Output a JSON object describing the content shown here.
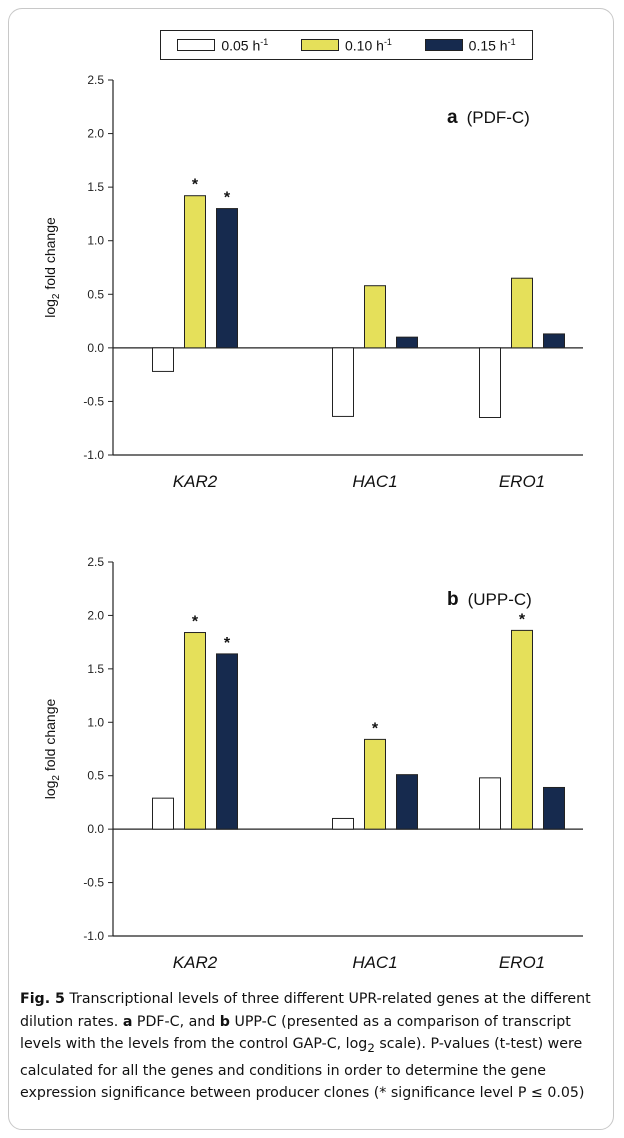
{
  "legend": [
    {
      "base": "0.05 h",
      "sup": "-1",
      "color": "#ffffff"
    },
    {
      "base": "0.10 h",
      "sup": "-1",
      "color": "#e5e05a"
    },
    {
      "base": "0.15 h",
      "sup": "-1",
      "color": "#162a4e"
    }
  ],
  "chart_data": [
    {
      "type": "bar",
      "panel_letter": "a",
      "panel_name": "(PDF-C)",
      "ylabel_base": "log",
      "ylabel_sub": "2",
      "ylabel_rest": " fold change",
      "ylim": [
        -1.0,
        2.5
      ],
      "yticks": [
        "2.5",
        "2.0",
        "1.5",
        "1.0",
        "0.5",
        "0.0",
        "-0.5",
        "-1.0"
      ],
      "categories": [
        "KAR2",
        "HAC1",
        "ERO1"
      ],
      "series": [
        {
          "name": "0.05 h-1",
          "values": [
            -0.22,
            -0.64,
            -0.65
          ],
          "significant": [
            false,
            false,
            false
          ]
        },
        {
          "name": "0.10 h-1",
          "values": [
            1.42,
            0.58,
            0.65
          ],
          "significant": [
            true,
            false,
            false
          ]
        },
        {
          "name": "0.15 h-1",
          "values": [
            1.3,
            0.1,
            0.13
          ],
          "significant": [
            true,
            false,
            false
          ]
        }
      ]
    },
    {
      "type": "bar",
      "panel_letter": "b",
      "panel_name": "(UPP-C)",
      "ylabel_base": "log",
      "ylabel_sub": "2",
      "ylabel_rest": " fold change",
      "ylim": [
        -1.0,
        2.5
      ],
      "yticks": [
        "2.5",
        "2.0",
        "1.5",
        "1.0",
        "0.5",
        "0.0",
        "-0.5",
        "-1.0"
      ],
      "categories": [
        "KAR2",
        "HAC1",
        "ERO1"
      ],
      "series": [
        {
          "name": "0.05 h-1",
          "values": [
            0.29,
            0.1,
            0.48
          ],
          "significant": [
            false,
            false,
            false
          ]
        },
        {
          "name": "0.10 h-1",
          "values": [
            1.84,
            0.84,
            1.86
          ],
          "significant": [
            true,
            true,
            true
          ]
        },
        {
          "name": "0.15 h-1",
          "values": [
            1.64,
            0.51,
            0.39
          ],
          "significant": [
            true,
            false,
            false
          ]
        }
      ]
    }
  ],
  "caption": {
    "fig_label": "Fig. 5",
    "text1": "  Transcriptional levels of three different UPR-related genes at the different dilution rates. ",
    "a": "a",
    "text2": " PDF-C, and ",
    "b": "b",
    "text3": " UPP-C (presented as a comparison of transcript levels with the levels from the control GAP-C, log",
    "sub": "2",
    "text4": " scale). P-values (t-test) were calculated for all the genes and conditions in order to determine the gene expression significance between producer clones (* significance level P ≤ 0.05)"
  }
}
